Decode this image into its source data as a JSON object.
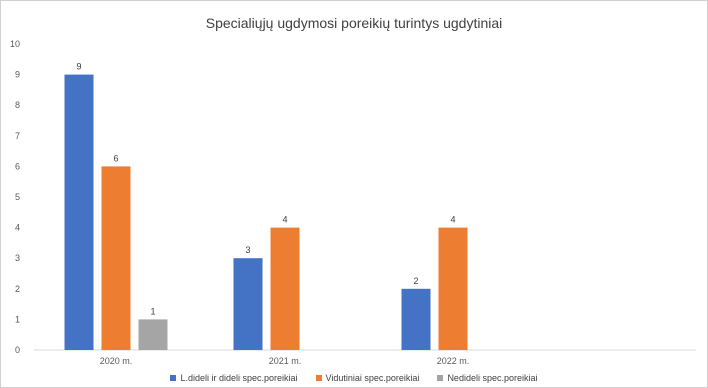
{
  "chart_data": {
    "type": "bar",
    "title": "Specialiųjų ugdymosi poreikių turintys ugdytiniai",
    "categories": [
      "2020 m.",
      "2021 m.",
      "2022 m."
    ],
    "series": [
      {
        "name": "L.dideli ir dideli spec.poreikiai",
        "values": [
          9,
          3,
          2
        ],
        "color": "#4472C4"
      },
      {
        "name": "Vidutiniai spec.poreikiai",
        "values": [
          6,
          4,
          4
        ],
        "color": "#ED7D31"
      },
      {
        "name": "Nedideli spec.poreikiai",
        "values": [
          1,
          null,
          null
        ],
        "color": "#A5A5A5"
      }
    ],
    "ylim": [
      0,
      10
    ],
    "yticks": [
      0,
      1,
      2,
      3,
      4,
      5,
      6,
      7,
      8,
      9,
      10
    ],
    "grid": false,
    "legend": "bottom"
  }
}
